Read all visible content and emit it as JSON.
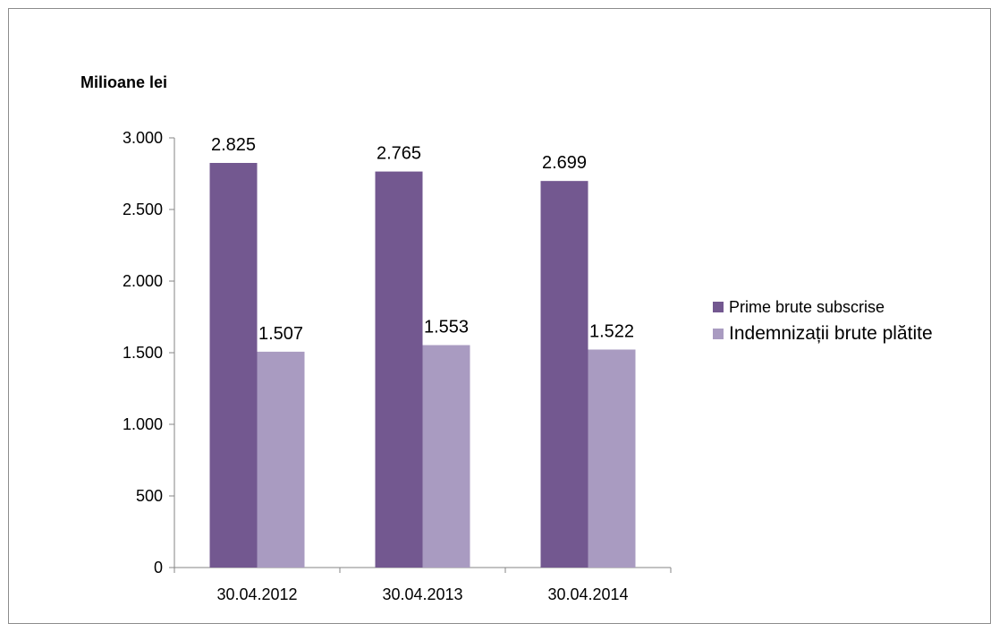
{
  "chart_data": {
    "type": "bar",
    "unit_label": "Milioane lei",
    "categories": [
      "30.04.2012",
      "30.04.2013",
      "30.04.2014"
    ],
    "series": [
      {
        "name": "Prime brute subscrise",
        "values": [
          2825,
          2765,
          2699
        ],
        "labels": [
          "2.825",
          "2.765",
          "2.699"
        ],
        "color": "#735890"
      },
      {
        "name": "Indemnizații brute plătite",
        "values": [
          1507,
          1553,
          1522
        ],
        "labels": [
          "1.507",
          "1.553",
          "1.522"
        ],
        "color": "#a99bc1"
      }
    ],
    "ylim": [
      0,
      3000
    ],
    "yticks": [
      0,
      500,
      1000,
      1500,
      2000,
      2500,
      3000
    ],
    "ytick_labels": [
      "0",
      "500",
      "1.000",
      "1.500",
      "2.000",
      "2.500",
      "3.000"
    ],
    "grid": false,
    "legend_position": "right"
  }
}
